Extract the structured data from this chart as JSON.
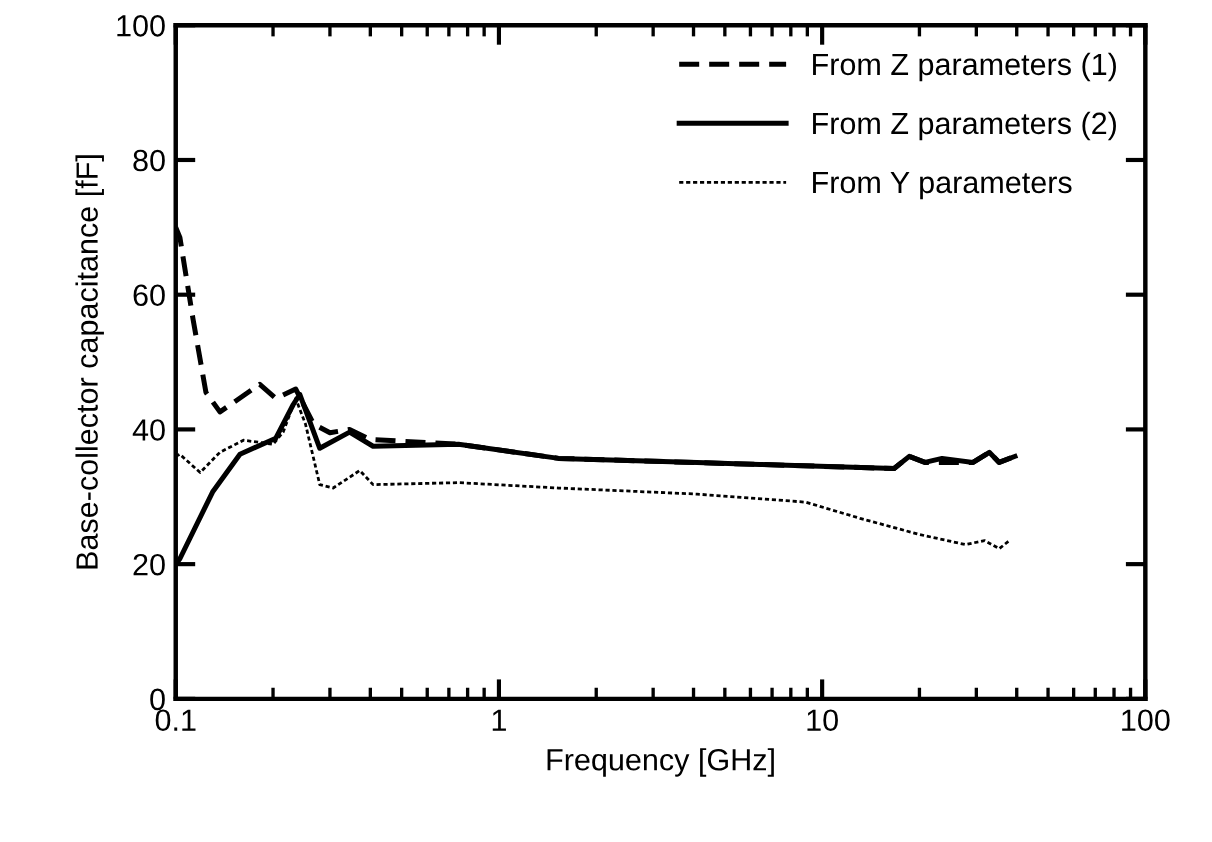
{
  "chart_data": {
    "type": "line",
    "xlabel": "Frequency [GHz]",
    "ylabel": "Base-collector capacitance [fF]",
    "log": "x",
    "xlim": [
      0.1,
      100
    ],
    "xticks": [
      0.1,
      1,
      10,
      100
    ],
    "ylim": [
      0,
      100
    ],
    "yticks": [
      0,
      20,
      40,
      60,
      80,
      100
    ],
    "grid": false,
    "legend": "top right",
    "marker": "none",
    "series": [
      {
        "name": "From Z parameters (1)",
        "color": "#000000",
        "line_style": "dashed",
        "x": [
          0.1,
          0.103,
          0.113,
          0.124,
          0.137,
          0.182,
          0.204,
          0.235,
          0.267,
          0.3,
          0.345,
          0.4,
          0.75,
          1.53,
          6.4,
          16.7,
          18.6,
          20.8,
          29.3,
          32.9,
          35.3,
          39.5
        ],
        "values": [
          70,
          68.5,
          56.5,
          45.5,
          42.6,
          46.7,
          44.6,
          46,
          40.8,
          39.5,
          40,
          38.5,
          37.8,
          35.7,
          34.8,
          34.2,
          36,
          35.1,
          35.1,
          36.6,
          35.1,
          36
        ]
      },
      {
        "name": "From Z parameters (2)",
        "color": "#000000",
        "line_style": "solid",
        "x": [
          0.1,
          0.103,
          0.13,
          0.158,
          0.204,
          0.231,
          0.242,
          0.279,
          0.345,
          0.408,
          0.75,
          1.53,
          4.1,
          6.4,
          16.7,
          18.6,
          20.8,
          23.5,
          29.3,
          32.9,
          35.3,
          39.5
        ],
        "values": [
          20,
          20.8,
          30.7,
          36.3,
          38.7,
          43.7,
          45.2,
          37.2,
          39.6,
          37.5,
          37.8,
          35.7,
          35.1,
          34.8,
          34.2,
          36,
          35.1,
          35.7,
          35.1,
          36.6,
          35.1,
          36
        ]
      },
      {
        "name": "From Y parameters",
        "color": "#000000",
        "line_style": "dotted",
        "x": [
          0.1,
          0.103,
          0.119,
          0.137,
          0.162,
          0.2,
          0.215,
          0.235,
          0.252,
          0.279,
          0.307,
          0.371,
          0.408,
          0.75,
          1.53,
          4.1,
          8.9,
          13.1,
          20,
          27.8,
          31.8,
          35.3,
          38
        ],
        "values": [
          36,
          36.3,
          33.6,
          36.6,
          38.4,
          37.8,
          39.6,
          44.6,
          40.8,
          31.8,
          31.3,
          33.9,
          31.8,
          32.1,
          31.3,
          30.4,
          29.2,
          26.8,
          24.4,
          22.9,
          23.5,
          22.3,
          23.5
        ]
      }
    ]
  }
}
